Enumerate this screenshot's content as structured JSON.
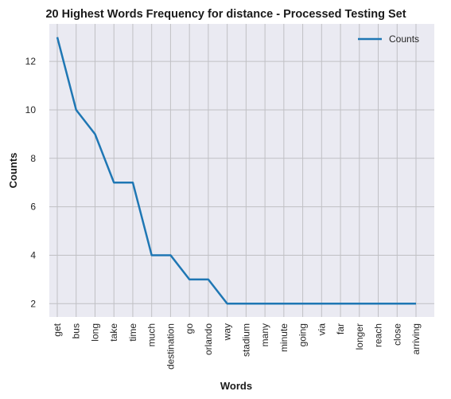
{
  "chart_data": {
    "type": "line",
    "title": "20 Highest Words Frequency for distance - Processed Testing Set",
    "xlabel": "Words",
    "ylabel": "Counts",
    "categories": [
      "get",
      "bus",
      "long",
      "take",
      "time",
      "much",
      "destination",
      "go",
      "orlando",
      "way",
      "stadium",
      "many",
      "minute",
      "going",
      "via",
      "far",
      "longer",
      "reach",
      "close",
      "arriving"
    ],
    "series": [
      {
        "name": "Counts",
        "values": [
          13,
          10,
          9,
          7,
          7,
          4,
          4,
          3,
          3,
          2,
          2,
          2,
          2,
          2,
          2,
          2,
          2,
          2,
          2,
          2
        ]
      }
    ],
    "yticks": [
      2,
      4,
      6,
      8,
      10,
      12
    ],
    "ylim": [
      1.45,
      13.55
    ],
    "grid": true,
    "legend": "top-right",
    "colors": {
      "line": "#1f77b4",
      "plot_bg": "#eaeaf2",
      "grid": "#c0c0c4"
    }
  }
}
